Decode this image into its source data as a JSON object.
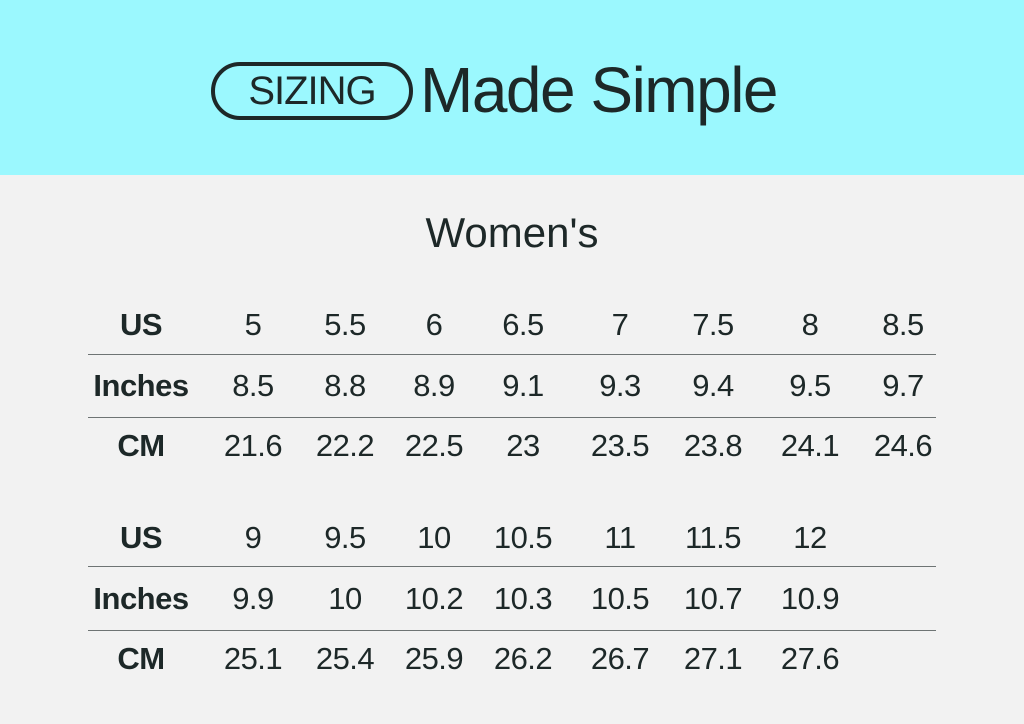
{
  "header": {
    "badge": "SIZING",
    "tagline": "Made Simple",
    "background": "#9bf8fe"
  },
  "title": "Women's",
  "tables": [
    {
      "rows": [
        {
          "label": "US",
          "values": [
            "5",
            "5.5",
            "6",
            "6.5",
            "7",
            "7.5",
            "8",
            "8.5"
          ]
        },
        {
          "label": "Inches",
          "values": [
            "8.5",
            "8.8",
            "8.9",
            "9.1",
            "9.3",
            "9.4",
            "9.5",
            "9.7"
          ]
        },
        {
          "label": "CM",
          "values": [
            "21.6",
            "22.2",
            "22.5",
            "23",
            "23.5",
            "23.8",
            "24.1",
            "24.6"
          ]
        }
      ]
    },
    {
      "rows": [
        {
          "label": "US",
          "values": [
            "9",
            "9.5",
            "10",
            "10.5",
            "11",
            "11.5",
            "12"
          ]
        },
        {
          "label": "Inches",
          "values": [
            "9.9",
            "10",
            "10.2",
            "10.3",
            "10.5",
            "10.7",
            "10.9"
          ]
        },
        {
          "label": "CM",
          "values": [
            "25.1",
            "25.4",
            "25.9",
            "26.2",
            "26.7",
            "27.1",
            "27.6"
          ]
        }
      ]
    }
  ]
}
